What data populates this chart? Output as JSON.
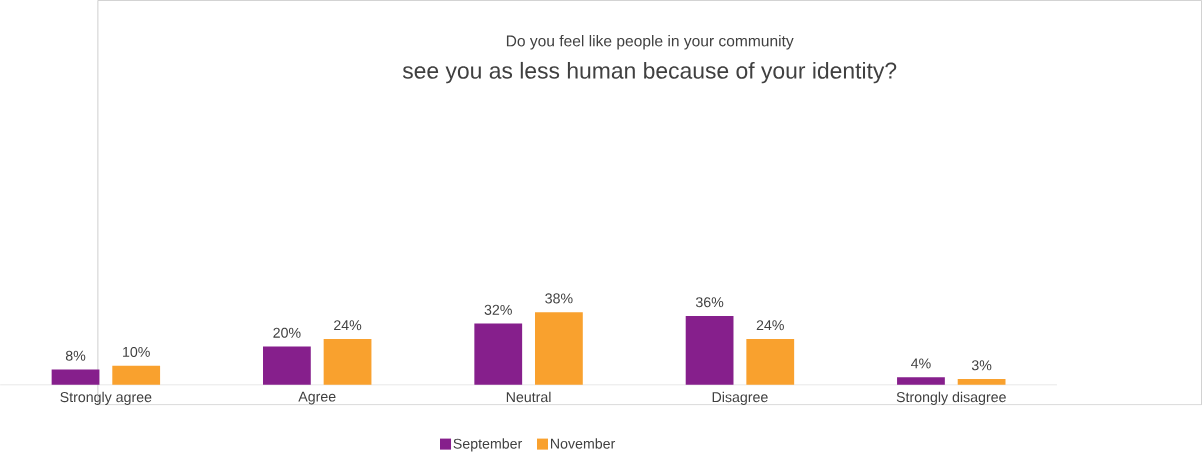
{
  "chart_data": {
    "type": "bar",
    "title": "Do you feel like people in your community",
    "subtitle": "see you as less human because of your identity?",
    "categories": [
      "Strongly agree",
      "Agree",
      "Neutral",
      "Disagree",
      "Strongly disagree"
    ],
    "series": [
      {
        "name": "September",
        "color": "#861f8c",
        "values": [
          8,
          20,
          32,
          36,
          4
        ],
        "value_labels": [
          "8%",
          "20%",
          "32%",
          "36%",
          "4%"
        ]
      },
      {
        "name": "November",
        "color": "#f9a12e",
        "values": [
          10,
          24,
          38,
          24,
          3
        ],
        "value_labels": [
          "10%",
          "24%",
          "38%",
          "24%",
          "3%"
        ]
      }
    ],
    "legend": "bottom"
  }
}
